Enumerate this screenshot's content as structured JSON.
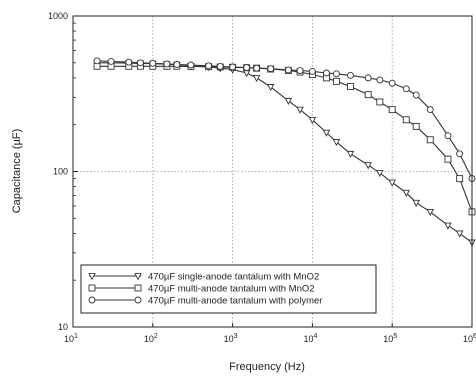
{
  "chart_data": {
    "type": "line",
    "title": "",
    "xlabel": "Frequency (Hz)",
    "ylabel": "Capacitance (µF)",
    "xscale": "log",
    "yscale": "log",
    "xlim": [
      10,
      1000000
    ],
    "ylim": [
      10,
      1000
    ],
    "grid": true,
    "legend_position": "lower-left",
    "x_ticks": [
      {
        "value": 10,
        "base": "10",
        "exp": "1"
      },
      {
        "value": 100,
        "base": "10",
        "exp": "2"
      },
      {
        "value": 1000,
        "base": "10",
        "exp": "3"
      },
      {
        "value": 10000,
        "base": "10",
        "exp": "4"
      },
      {
        "value": 100000,
        "base": "10",
        "exp": "5"
      },
      {
        "value": 1000000,
        "base": "10",
        "exp": "6"
      }
    ],
    "y_ticks": [
      {
        "value": 10,
        "label": "10"
      },
      {
        "value": 100,
        "label": "100"
      },
      {
        "value": 1000,
        "label": "1000"
      }
    ],
    "series": [
      {
        "name": "470µF single-anode tantalum with MnO2",
        "marker": "triangle-down",
        "color": "#333333",
        "x": [
          20,
          30,
          50,
          70,
          100,
          150,
          200,
          300,
          500,
          700,
          1000,
          1500,
          2000,
          3000,
          5000,
          7000,
          10000,
          15000,
          20000,
          30000,
          50000,
          70000,
          100000,
          150000,
          200000,
          300000,
          500000,
          700000,
          1000000
        ],
        "y": [
          500,
          500,
          498,
          496,
          494,
          490,
          486,
          478,
          470,
          462,
          452,
          430,
          400,
          350,
          285,
          250,
          215,
          178,
          155,
          130,
          110,
          98,
          85,
          73,
          63,
          55,
          45,
          40,
          35
        ]
      },
      {
        "name": "470µF multi-anode tantalum with MnO2",
        "marker": "square",
        "color": "#333333",
        "x": [
          20,
          30,
          50,
          70,
          100,
          150,
          200,
          300,
          500,
          700,
          1000,
          1500,
          2000,
          3000,
          5000,
          7000,
          10000,
          15000,
          20000,
          30000,
          50000,
          70000,
          100000,
          150000,
          200000,
          300000,
          500000,
          700000,
          1000000
        ],
        "y": [
          475,
          475,
          475,
          475,
          475,
          475,
          475,
          474,
          472,
          470,
          468,
          465,
          462,
          456,
          446,
          436,
          420,
          400,
          380,
          352,
          312,
          280,
          250,
          215,
          195,
          160,
          120,
          90,
          55
        ]
      },
      {
        "name": "470µF multi-anode tantalum with polymer",
        "marker": "circle",
        "color": "#333333",
        "x": [
          20,
          30,
          50,
          70,
          100,
          150,
          200,
          300,
          500,
          700,
          1000,
          1500,
          2000,
          3000,
          5000,
          7000,
          10000,
          15000,
          20000,
          30000,
          50000,
          70000,
          100000,
          150000,
          200000,
          300000,
          500000,
          700000,
          1000000
        ],
        "y": [
          515,
          510,
          505,
          500,
          496,
          492,
          488,
          484,
          478,
          474,
          470,
          466,
          462,
          458,
          450,
          446,
          440,
          430,
          425,
          415,
          400,
          388,
          370,
          340,
          310,
          250,
          170,
          130,
          90
        ]
      }
    ]
  }
}
